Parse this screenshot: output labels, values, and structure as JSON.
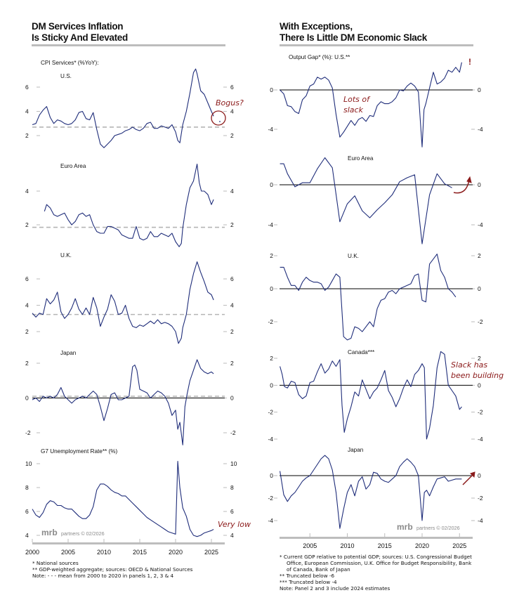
{
  "left": {
    "title_line1": "DM Services Inflation",
    "title_line2": "Is Sticky And Elevated",
    "footnotes": [
      "*  National sources",
      "** GDP-weighted aggregate; sources: OECD & National Sources",
      "Note: - - - mean from 2000 to 2020 in panels 1, 2, 3 & 4"
    ],
    "watermark_brand": "mrb",
    "watermark_text": "partners © 02/2026"
  },
  "right": {
    "title_line1": "With Exceptions,",
    "title_line2": "There Is Little DM Economic Slack",
    "footnotes": [
      "*   Current GDP relative to potential GDP; sources: U.S. Congressional Budget",
      "Office, European Commission, U.K. Office for Budget Responsibility, Bank",
      "of Canada, Bank of Japan",
      "**  Truncated below -6",
      "*** Truncated below -4",
      "Note: Panel 2 and 3 include 2024 estimates"
    ],
    "watermark_brand": "mrb",
    "watermark_text": "partners © 02/2026"
  },
  "colors": {
    "line": "#1f2d7a",
    "mean": "#b5b5b5",
    "annotation": "#8b1a1a",
    "axis": "#bdbdbd",
    "zero": "#000000"
  },
  "chart_data": [
    {
      "id": "us-cpi-services",
      "type": "line",
      "side": "left",
      "header": "CPI Services* (%YoY):",
      "label": "U.S.",
      "yticks": [
        2,
        4,
        6
      ],
      "ylim": [
        0.9,
        7.8
      ],
      "mean": 2.7,
      "annotation": {
        "text": "Bogus?",
        "circle_at": [
          2025.3,
          3.5
        ]
      },
      "x": [
        2000,
        2000.5,
        2001,
        2001.5,
        2002,
        2002.5,
        2003,
        2003.5,
        2004,
        2004.5,
        2005,
        2005.5,
        2006,
        2006.5,
        2007,
        2007.5,
        2008,
        2008.5,
        2009,
        2009.5,
        2010,
        2010.5,
        2011,
        2011.5,
        2012,
        2012.5,
        2013,
        2013.5,
        2014,
        2014.5,
        2015,
        2015.5,
        2016,
        2016.5,
        2017,
        2017.5,
        2018,
        2018.5,
        2019,
        2019.5,
        2020,
        2020.3,
        2020.6,
        2021,
        2021.5,
        2022,
        2022.5,
        2022.8,
        2023,
        2023.5,
        2024,
        2024.5,
        2025,
        2025.3
      ],
      "values": [
        2.9,
        3.0,
        3.7,
        4.1,
        4.4,
        3.5,
        3.0,
        3.3,
        3.2,
        3.0,
        2.9,
        3.0,
        3.3,
        3.9,
        4.0,
        3.4,
        3.3,
        3.9,
        2.5,
        1.3,
        1.0,
        1.3,
        1.6,
        2.0,
        2.1,
        2.2,
        2.4,
        2.5,
        2.7,
        2.5,
        2.4,
        2.6,
        3.0,
        3.1,
        2.6,
        2.6,
        2.8,
        2.7,
        2.6,
        2.9,
        2.3,
        1.6,
        1.4,
        2.9,
        4.0,
        5.5,
        7.2,
        7.5,
        7.1,
        5.7,
        5.4,
        4.7,
        4.0,
        3.6
      ]
    },
    {
      "id": "euro-cpi-services",
      "type": "line",
      "side": "left",
      "label": "Euro Area",
      "yticks": [
        2,
        4
      ],
      "ylim": [
        0.6,
        5.4
      ],
      "mean": 1.85,
      "x": [
        2001.7,
        2002,
        2002.5,
        2003,
        2003.5,
        2004,
        2004.5,
        2005,
        2005.5,
        2006,
        2006.5,
        2007,
        2007.5,
        2008,
        2008.5,
        2009,
        2009.5,
        2010,
        2010.5,
        2011,
        2011.5,
        2012,
        2012.5,
        2013,
        2013.5,
        2014,
        2014.5,
        2015,
        2015.5,
        2016,
        2016.5,
        2017,
        2017.5,
        2018,
        2018.5,
        2019,
        2019.5,
        2020,
        2020.5,
        2020.8,
        2021,
        2021.5,
        2022,
        2022.5,
        2023,
        2023.3,
        2023.6,
        2024,
        2024.5,
        2025,
        2025.3
      ],
      "values": [
        2.8,
        3.2,
        3.0,
        2.6,
        2.5,
        2.6,
        2.7,
        2.3,
        2.0,
        2.2,
        2.6,
        2.7,
        2.5,
        2.6,
        2.0,
        1.6,
        1.5,
        1.5,
        1.9,
        1.9,
        1.8,
        1.7,
        1.4,
        1.3,
        1.2,
        1.2,
        1.9,
        1.2,
        1.1,
        1.2,
        1.6,
        1.3,
        1.3,
        1.5,
        1.4,
        1.3,
        1.5,
        1.0,
        0.7,
        0.9,
        1.8,
        3.2,
        4.2,
        4.6,
        5.6,
        4.5,
        4.0,
        4.0,
        3.8,
        3.2,
        3.5
      ]
    },
    {
      "id": "uk-cpi-services",
      "type": "line",
      "side": "left",
      "label": "U.K.",
      "yticks": [
        2,
        4,
        6
      ],
      "ylim": [
        0.9,
        7.5
      ],
      "mean": 3.3,
      "x": [
        2000,
        2000.5,
        2001,
        2001.5,
        2002,
        2002.5,
        2003,
        2003.5,
        2004,
        2004.5,
        2005,
        2005.5,
        2006,
        2006.5,
        2007,
        2007.5,
        2008,
        2008.5,
        2009,
        2009.5,
        2010,
        2010.5,
        2011,
        2011.5,
        2012,
        2012.5,
        2013,
        2013.5,
        2014,
        2014.5,
        2015,
        2015.5,
        2016,
        2016.5,
        2017,
        2017.5,
        2018,
        2018.5,
        2019,
        2019.5,
        2020,
        2020.4,
        2020.8,
        2021,
        2021.5,
        2022,
        2022.5,
        2023,
        2023.5,
        2024,
        2024.5,
        2025,
        2025.3
      ],
      "values": [
        3.4,
        3.1,
        3.4,
        3.3,
        4.5,
        4.1,
        4.4,
        5.0,
        3.5,
        3.0,
        3.3,
        3.8,
        4.5,
        3.7,
        3.3,
        3.8,
        3.3,
        4.6,
        3.8,
        2.4,
        3.1,
        3.7,
        4.8,
        4.3,
        3.3,
        3.4,
        4.0,
        3.0,
        2.4,
        2.3,
        2.5,
        2.4,
        2.6,
        2.8,
        2.6,
        2.9,
        2.6,
        2.7,
        2.6,
        2.4,
        2.0,
        1.1,
        1.5,
        2.3,
        3.3,
        5.2,
        6.4,
        7.3,
        6.5,
        5.8,
        5.0,
        4.8,
        4.4
      ]
    },
    {
      "id": "japan-cpi-services",
      "type": "line",
      "side": "left",
      "label": "Japan",
      "yticks": [
        -2,
        0,
        2
      ],
      "ylim": [
        -2.8,
        2.5
      ],
      "mean": 0.1,
      "zero_line": true,
      "x": [
        2000,
        2000.5,
        2001,
        2001.5,
        2002,
        2002.5,
        2003,
        2003.5,
        2004,
        2004.5,
        2005,
        2005.5,
        2006,
        2006.5,
        2007,
        2007.5,
        2008,
        2008.5,
        2009,
        2009.5,
        2010,
        2010.5,
        2011,
        2011.5,
        2012,
        2012.5,
        2013,
        2013.5,
        2014,
        2014.3,
        2014.6,
        2015,
        2015.5,
        2016,
        2016.5,
        2017,
        2017.5,
        2018,
        2018.5,
        2019,
        2019.5,
        2020,
        2020.3,
        2020.6,
        2021,
        2021.3,
        2021.6,
        2022,
        2022.5,
        2023,
        2023.5,
        2024,
        2024.5,
        2025,
        2025.3
      ],
      "values": [
        -0.1,
        0.0,
        -0.2,
        0.1,
        0.0,
        0.1,
        0.0,
        0.2,
        0.6,
        0.1,
        -0.1,
        -0.3,
        -0.1,
        0.0,
        0.1,
        0.0,
        0.2,
        0.4,
        0.2,
        -0.5,
        -1.3,
        -0.6,
        0.2,
        0.3,
        -0.1,
        -0.1,
        0.0,
        0.1,
        1.8,
        1.9,
        1.6,
        0.5,
        0.4,
        0.3,
        0.0,
        0.2,
        0.4,
        0.3,
        0.1,
        -0.3,
        -1.0,
        -0.7,
        -1.8,
        -1.4,
        -2.7,
        -0.5,
        0.2,
        1.0,
        1.6,
        2.2,
        1.7,
        1.5,
        1.4,
        1.5,
        1.4
      ]
    },
    {
      "id": "g7-unemployment",
      "type": "line",
      "side": "left",
      "header": "G7 Unemployment Rate** (%)",
      "yticks": [
        4,
        6,
        8,
        10
      ],
      "ylim": [
        3.7,
        10.5
      ],
      "annotation": {
        "text": "Very low"
      },
      "x": [
        2000,
        2000.5,
        2001,
        2001.5,
        2002,
        2002.5,
        2003,
        2003.5,
        2004,
        2004.5,
        2005,
        2005.5,
        2006,
        2006.5,
        2007,
        2007.5,
        2008,
        2008.5,
        2009,
        2009.5,
        2010,
        2010.5,
        2011,
        2011.5,
        2012,
        2012.5,
        2013,
        2013.5,
        2014,
        2014.5,
        2015,
        2015.5,
        2016,
        2016.5,
        2017,
        2017.5,
        2018,
        2018.5,
        2019,
        2019.5,
        2020,
        2020.3,
        2020.6,
        2021,
        2021.5,
        2022,
        2022.5,
        2023,
        2023.5,
        2024,
        2024.5,
        2025,
        2025.3
      ],
      "values": [
        6.2,
        5.7,
        5.5,
        5.9,
        6.6,
        6.9,
        6.8,
        6.5,
        6.5,
        6.3,
        6.2,
        6.2,
        5.9,
        5.6,
        5.4,
        5.4,
        5.7,
        6.4,
        7.8,
        8.3,
        8.3,
        8.1,
        7.8,
        7.6,
        7.5,
        7.3,
        7.3,
        7.0,
        6.7,
        6.4,
        6.1,
        5.8,
        5.5,
        5.3,
        5.1,
        4.9,
        4.7,
        4.5,
        4.3,
        4.2,
        4.1,
        10.2,
        8.0,
        6.3,
        5.6,
        4.5,
        4.0,
        3.9,
        4.0,
        4.2,
        4.3,
        4.4,
        4.5
      ]
    },
    {
      "id": "us-output-gap",
      "type": "line",
      "side": "right",
      "header": "Output Gap* (%):  U.S.**",
      "yticks": [
        -4,
        0
      ],
      "ylim": [
        -6.0,
        2.9
      ],
      "zero_line": true,
      "annotation": {
        "text": "Lots of slack",
        "flag": "!"
      },
      "x": [
        2001,
        2001.5,
        2002,
        2002.5,
        2003,
        2003.5,
        2004,
        2004.5,
        2005,
        2005.5,
        2006,
        2006.5,
        2007,
        2007.5,
        2008,
        2008.5,
        2009,
        2009.5,
        2010,
        2010.5,
        2011,
        2011.5,
        2012,
        2012.5,
        2013,
        2013.5,
        2014,
        2014.5,
        2015,
        2015.5,
        2016,
        2016.5,
        2017,
        2017.5,
        2018,
        2018.5,
        2019,
        2019.5,
        2020,
        2020.25,
        2020.5,
        2021,
        2021.5,
        2022,
        2022.5,
        2023,
        2023.5,
        2024,
        2024.5,
        2025,
        2025.3
      ],
      "values": [
        0.0,
        -0.4,
        -1.6,
        -1.7,
        -2.2,
        -2.4,
        -1.0,
        -0.6,
        0.4,
        0.6,
        1.3,
        1.1,
        1.3,
        1.0,
        0.2,
        -2.5,
        -4.8,
        -4.3,
        -3.7,
        -3.1,
        -3.6,
        -3.0,
        -2.8,
        -3.2,
        -2.6,
        -2.7,
        -1.6,
        -1.2,
        -1.4,
        -1.4,
        -1.2,
        -0.8,
        0.0,
        -0.1,
        0.4,
        0.7,
        0.4,
        -0.2,
        -5.8,
        -2.0,
        -1.4,
        0.2,
        1.8,
        0.6,
        0.8,
        1.2,
        2.0,
        1.8,
        2.3,
        1.8,
        2.8
      ]
    },
    {
      "id": "euro-output-gap",
      "type": "line",
      "side": "right",
      "label": "Euro Area",
      "yticks": [
        -4,
        0
      ],
      "ylim": [
        -5.8,
        2.7
      ],
      "zero_line": true,
      "annotation": {
        "arrow": "curved-up"
      },
      "x": [
        2001,
        2001.5,
        2002,
        2003,
        2004,
        2005,
        2006,
        2007,
        2008,
        2009,
        2010,
        2011,
        2012,
        2013,
        2014,
        2015,
        2016,
        2017,
        2018,
        2019,
        2020,
        2021,
        2022,
        2023,
        2024
      ],
      "values": [
        2.1,
        2.1,
        1.1,
        -0.2,
        0.2,
        0.2,
        1.6,
        2.7,
        1.7,
        -3.7,
        -1.9,
        -1.1,
        -2.6,
        -3.3,
        -2.5,
        -1.8,
        -1.0,
        0.3,
        0.7,
        1.0,
        -5.9,
        -1.0,
        1.1,
        0.1,
        -0.3
      ]
    },
    {
      "id": "uk-output-gap",
      "type": "line",
      "side": "right",
      "label": "U.K.",
      "yticks": [
        -2,
        0,
        2
      ],
      "ylim": [
        -3.3,
        2.2
      ],
      "zero_line": true,
      "x": [
        2001,
        2001.5,
        2002,
        2002.5,
        2003,
        2003.5,
        2004,
        2004.5,
        2005,
        2005.5,
        2006,
        2006.5,
        2007,
        2007.5,
        2008,
        2008.5,
        2009,
        2009.5,
        2010,
        2010.5,
        2011,
        2011.5,
        2012,
        2012.5,
        2013,
        2013.5,
        2014,
        2014.5,
        2015,
        2015.5,
        2016,
        2016.5,
        2017,
        2017.5,
        2018,
        2018.5,
        2019,
        2019.5,
        2020,
        2020.5,
        2021,
        2021.5,
        2022,
        2022.5,
        2023,
        2023.5,
        2024,
        2024.5
      ],
      "values": [
        1.3,
        1.3,
        0.7,
        0.2,
        0.2,
        -0.1,
        0.4,
        0.7,
        0.5,
        0.4,
        0.4,
        0.3,
        -0.1,
        0.1,
        0.5,
        0.9,
        0.7,
        -2.9,
        -3.1,
        -3.0,
        -2.3,
        -2.4,
        -2.6,
        -2.3,
        -2.0,
        -2.3,
        -1.2,
        -0.7,
        -0.6,
        -0.2,
        -0.1,
        -0.3,
        0.0,
        0.1,
        0.2,
        0.3,
        0.8,
        0.9,
        -0.7,
        -0.8,
        1.5,
        1.8,
        2.1,
        1.1,
        0.7,
        0.0,
        -0.2,
        -0.5
      ]
    },
    {
      "id": "canada-output-gap",
      "type": "line",
      "side": "right",
      "label": "Canada***",
      "yticks": [
        -4,
        -2,
        0,
        2
      ],
      "ylim": [
        -4.0,
        2.6
      ],
      "zero_line": true,
      "annotation": {
        "text": "Slack has been building"
      },
      "x": [
        2001,
        2001.3,
        2001.6,
        2002,
        2002.5,
        2003,
        2003.5,
        2004,
        2004.5,
        2005,
        2005.5,
        2006,
        2006.5,
        2007,
        2007.5,
        2008,
        2008.5,
        2009,
        2009.3,
        2009.6,
        2010,
        2010.5,
        2011,
        2011.5,
        2012,
        2012.5,
        2013,
        2013.5,
        2014,
        2014.5,
        2015,
        2015.5,
        2016,
        2016.5,
        2017,
        2017.5,
        2018,
        2018.5,
        2019,
        2019.5,
        2020,
        2020.3,
        2020.6,
        2021,
        2021.5,
        2022,
        2022.5,
        2023,
        2023.5,
        2024,
        2024.5,
        2025,
        2025.3
      ],
      "values": [
        1.4,
        0.8,
        -0.1,
        -0.2,
        0.3,
        0.2,
        -0.7,
        -1.0,
        -0.8,
        0.2,
        0.3,
        1.0,
        1.6,
        0.9,
        1.2,
        1.8,
        1.4,
        1.9,
        -1.5,
        -3.5,
        -2.5,
        -1.6,
        -0.5,
        -0.8,
        0.4,
        -0.3,
        -1.0,
        -0.5,
        -0.2,
        0.4,
        1.1,
        -0.4,
        -0.9,
        -1.6,
        -1.0,
        -0.2,
        0.4,
        -0.1,
        0.8,
        1.1,
        1.6,
        1.3,
        -4.0,
        -3.2,
        -1.5,
        1.3,
        2.5,
        2.3,
        0.0,
        -0.4,
        -0.8,
        -1.8,
        -1.6
      ]
    },
    {
      "id": "japan-output-gap",
      "type": "line",
      "side": "right",
      "label": "Japan",
      "yticks": [
        -4,
        -2,
        0
      ],
      "ylim": [
        -4.8,
        2.0
      ],
      "zero_line": true,
      "annotation": {
        "arrow": "straight-up"
      },
      "x": [
        2001,
        2001.5,
        2002,
        2002.5,
        2003,
        2003.5,
        2004,
        2004.5,
        2005,
        2005.5,
        2006,
        2006.5,
        2007,
        2007.5,
        2008,
        2008.5,
        2009,
        2009.5,
        2010,
        2010.5,
        2011,
        2011.5,
        2012,
        2012.5,
        2013,
        2013.5,
        2014,
        2014.5,
        2015,
        2015.5,
        2016,
        2016.5,
        2017,
        2017.5,
        2018,
        2018.5,
        2019,
        2019.5,
        2020,
        2020.3,
        2020.6,
        2021,
        2021.5,
        2022,
        2022.5,
        2023,
        2023.5,
        2024,
        2024.5,
        2025,
        2025.3
      ],
      "values": [
        0.4,
        -1.7,
        -2.3,
        -1.8,
        -1.5,
        -1.0,
        -0.5,
        -0.2,
        0.0,
        0.5,
        1.0,
        1.5,
        1.8,
        1.5,
        0.5,
        -1.5,
        -4.7,
        -3.0,
        -1.5,
        -0.8,
        -1.8,
        -0.5,
        -0.1,
        -1.2,
        -0.8,
        0.3,
        0.2,
        -0.3,
        -0.5,
        -0.6,
        -0.3,
        0.0,
        0.8,
        1.2,
        1.5,
        1.2,
        0.8,
        0.0,
        -4.0,
        -1.5,
        -1.3,
        -1.8,
        -1.0,
        -0.3,
        -0.2,
        -0.1,
        -0.5,
        -0.4,
        -0.3,
        -0.3,
        -0.3
      ]
    }
  ],
  "xaxis_left": {
    "ticks": [
      "2000",
      "2005",
      "2010",
      "2015",
      "2020",
      "2025"
    ]
  },
  "xaxis_right": {
    "ticks": [
      "2005",
      "2010",
      "2015",
      "2020",
      "2025"
    ]
  }
}
